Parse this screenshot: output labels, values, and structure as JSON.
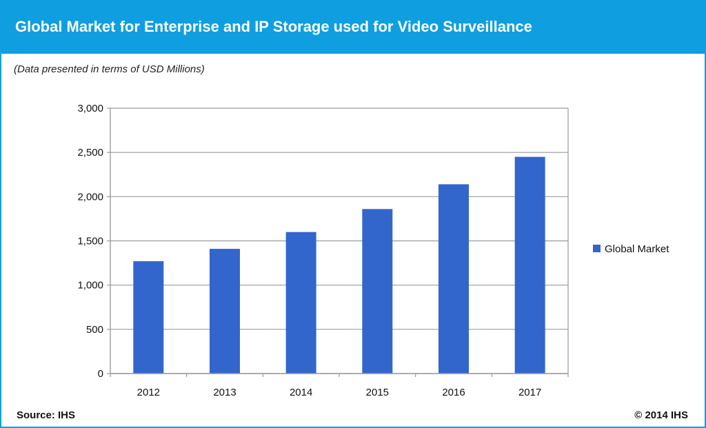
{
  "header": {
    "title": "Global Market for Enterprise and IP Storage used for Video Surveillance"
  },
  "subtitle": "(Data presented in terms of USD Millions)",
  "footer": {
    "source": "Source: IHS",
    "copyright": "© 2014 IHS"
  },
  "colors": {
    "header_bg": "#0f9fe0",
    "bar": "#3366cc",
    "grid": "#9a9a9a"
  },
  "chart_data": {
    "type": "bar",
    "title": "",
    "xlabel": "",
    "ylabel": "",
    "categories": [
      "2012",
      "2013",
      "2014",
      "2015",
      "2016",
      "2017"
    ],
    "series": [
      {
        "name": "Global Market",
        "values": [
          1270,
          1410,
          1600,
          1860,
          2140,
          2450
        ]
      }
    ],
    "ylim": [
      0,
      3000
    ],
    "yticks": [
      0,
      500,
      1000,
      1500,
      2000,
      2500,
      3000
    ],
    "ytick_labels": [
      "0",
      "500",
      "1,000",
      "1,500",
      "2,000",
      "2,500",
      "3,000"
    ],
    "grid": true,
    "legend": "right"
  }
}
